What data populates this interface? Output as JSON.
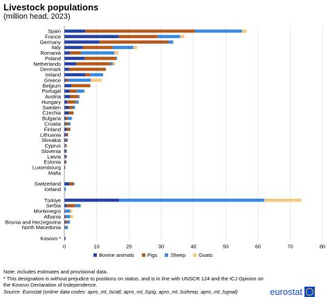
{
  "header": {
    "title": "Livestock populations",
    "subtitle": "(million head, 2023)"
  },
  "chart_data": {
    "type": "bar",
    "orientation": "horizontal",
    "stacked": true,
    "xlim": [
      0,
      80
    ],
    "xticks": [
      0,
      10,
      20,
      30,
      40,
      50,
      60,
      70,
      80
    ],
    "grid": true,
    "legend_position": "bottom",
    "categories": [
      "Spain",
      "France",
      "Germany",
      "Italy",
      "Romania",
      "Poland",
      "Netherlands",
      "Denmark",
      "Ireland",
      "Greece",
      "Belgium",
      "Portugal",
      "Austria",
      "Hungary",
      "Sweden",
      "Czechia",
      "Bulgaria",
      "Croatia",
      "Finland",
      "Lithuania",
      "Slovakia",
      "Cyprus",
      "Slovenia",
      "Latvia",
      "Estonia",
      "Luxembourg",
      "Malta",
      "",
      "Switzerland",
      "Iceland",
      "",
      "Türkiye",
      "Serbia",
      "Montenegro",
      "Albania",
      "Bosnia and Herzegovina",
      "North Macedonia",
      "",
      "Kosovo *"
    ],
    "series": [
      {
        "name": "Bovine animals",
        "color": "#2644a7",
        "values": [
          6.5,
          16.9,
          10.9,
          5.7,
          1.8,
          6.3,
          3.7,
          1.4,
          6.5,
          0.5,
          2.2,
          1.6,
          1.8,
          0.9,
          1.4,
          1.4,
          0.5,
          0.4,
          0.8,
          0.6,
          0.4,
          0.1,
          0.5,
          0.4,
          0.3,
          0.2,
          0.0,
          null,
          1.5,
          0.1,
          null,
          17.0,
          0.8,
          0.1,
          0.4,
          0.4,
          0.2,
          null,
          0.3
        ]
      },
      {
        "name": "Pigs",
        "color": "#b65b1b",
        "values": [
          34.0,
          12.0,
          21.3,
          9.2,
          3.4,
          9.7,
          10.6,
          11.4,
          1.5,
          0.7,
          5.8,
          2.2,
          2.5,
          2.6,
          1.3,
          1.4,
          0.6,
          0.9,
          1.0,
          0.5,
          0.4,
          0.3,
          0.2,
          0.3,
          0.3,
          0.1,
          0.0,
          null,
          1.3,
          0.0,
          null,
          0.0,
          2.6,
          0.0,
          0.2,
          0.5,
          0.2,
          null,
          0.0
        ]
      },
      {
        "name": "Sheep",
        "color": "#388ae2",
        "values": [
          14.5,
          7.0,
          1.5,
          6.5,
          10.3,
          0.3,
          0.7,
          0.1,
          4.0,
          7.0,
          0.1,
          2.3,
          0.4,
          0.9,
          0.6,
          0.1,
          1.2,
          0.6,
          0.1,
          0.1,
          0.3,
          0.3,
          0.1,
          0.1,
          0.1,
          0.0,
          0.0,
          null,
          0.3,
          0.4,
          null,
          45.0,
          1.6,
          1.7,
          1.2,
          0.8,
          0.7,
          null,
          0.1
        ]
      },
      {
        "name": "Goats",
        "color": "#f6c880",
        "values": [
          1.5,
          1.3,
          0.2,
          1.1,
          1.3,
          0.1,
          0.7,
          0.0,
          0.0,
          3.4,
          0.0,
          0.3,
          0.1,
          0.1,
          0.0,
          0.0,
          0.2,
          0.1,
          0.0,
          0.0,
          0.0,
          0.3,
          0.0,
          0.0,
          0.0,
          0.0,
          0.0,
          null,
          0.1,
          0.0,
          null,
          11.5,
          0.3,
          0.6,
          0.9,
          0.1,
          0.1,
          null,
          0.0
        ]
      }
    ]
  },
  "legend": {
    "items": [
      {
        "label": "Bovine animals",
        "color": "#2644a7"
      },
      {
        "label": "Pigs",
        "color": "#b65b1b"
      },
      {
        "label": "Sheep",
        "color": "#388ae2"
      },
      {
        "label": "Goats",
        "color": "#f6c880"
      }
    ]
  },
  "notes": {
    "line1": "Note: includes estimates and provisional data.",
    "line2": "* This designation is without prejudice to positions on status, and is in line with UNSCR 124 and the ICJ Opinion on the Kosovo Declaration of Independence.",
    "source": "Source: Eurostat (online data codes: apro_mt_lscatl, apro_mt_lspig, apro_mt_lssheep, apro_mt_lsgoat)"
  },
  "logo": {
    "text": "eurostat"
  }
}
